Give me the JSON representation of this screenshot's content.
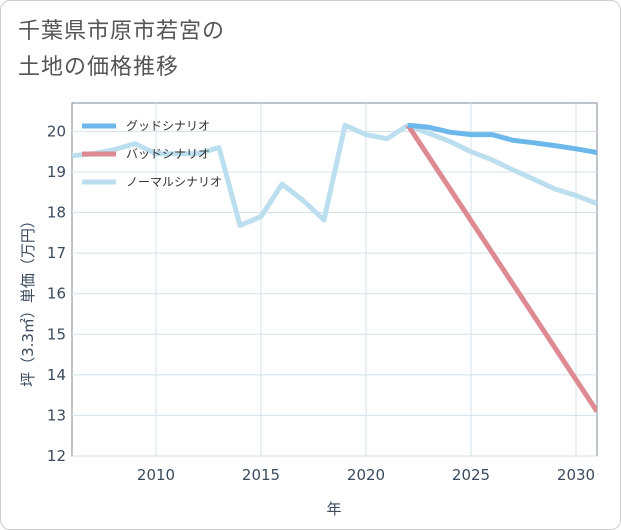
{
  "chart_data": {
    "type": "line",
    "title_lines": [
      "千葉県市原市若宮の",
      "土地の価格推移"
    ],
    "xlabel": "年",
    "ylabel": "坪（3.3㎡）単価（万円）",
    "xlim": [
      2006,
      2031
    ],
    "ylim": [
      12,
      20.7
    ],
    "x_ticks": [
      2010,
      2015,
      2020,
      2025,
      2030
    ],
    "y_ticks": [
      12,
      13,
      14,
      15,
      16,
      17,
      18,
      19,
      20
    ],
    "grid": true,
    "legend_position": "top-left",
    "series": [
      {
        "name": "グッドシナリオ",
        "color": "#6cb8ea",
        "x": [
          2022,
          2023,
          2024,
          2025,
          2026,
          2027,
          2028,
          2029,
          2030,
          2031
        ],
        "values": [
          20.15,
          20.1,
          19.98,
          19.92,
          19.92,
          19.78,
          19.72,
          19.65,
          19.57,
          19.48
        ]
      },
      {
        "name": "バッドシナリオ",
        "color": "#de8a93",
        "x": [
          2022,
          2031
        ],
        "values": [
          20.15,
          13.1
        ]
      },
      {
        "name": "ノーマルシナリオ",
        "color": "#bcdff0",
        "x": [
          2006,
          2007,
          2008,
          2009,
          2010,
          2011,
          2012,
          2013,
          2014,
          2015,
          2016,
          2017,
          2018,
          2019,
          2020,
          2021,
          2022,
          2023,
          2024,
          2025,
          2026,
          2027,
          2028,
          2029,
          2030,
          2031
        ],
        "values": [
          19.4,
          19.45,
          19.55,
          19.7,
          19.45,
          19.45,
          19.45,
          19.6,
          17.68,
          17.9,
          18.7,
          18.3,
          17.82,
          20.15,
          19.92,
          19.82,
          20.15,
          19.95,
          19.75,
          19.5,
          19.3,
          19.05,
          18.82,
          18.58,
          18.42,
          18.22
        ]
      }
    ]
  }
}
